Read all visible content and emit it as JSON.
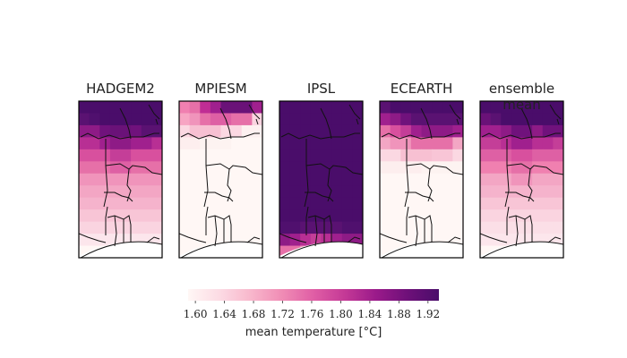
{
  "panels": [
    {
      "title": "HADGEM2",
      "colors": [
        [
          "#4a0d6a",
          "#4a0d6a",
          "#4a0d6a",
          "#4a0d6a",
          "#4a0d6a",
          "#4a0d6a",
          "#4a0d6a",
          "#4a0d6a"
        ],
        [
          "#5a1272",
          "#50106e",
          "#4a0d6a",
          "#4a0d6a",
          "#4a0d6a",
          "#4a0d6a",
          "#4a0d6a",
          "#4a0d6a"
        ],
        [
          "#8e1b86",
          "#8e1b86",
          "#70127c",
          "#6a1278",
          "#6a1278",
          "#70127c",
          "#5a1272",
          "#5a1272"
        ],
        [
          "#b82f94",
          "#b82f94",
          "#a0208e",
          "#8e1b86",
          "#8e1b86",
          "#a0208e",
          "#a0208e",
          "#b82f94"
        ],
        [
          "#d8509e",
          "#d8509e",
          "#d8509e",
          "#c43e98",
          "#c43e98",
          "#d8509e",
          "#d8509e",
          "#d8509e"
        ],
        [
          "#e670a8",
          "#e670a8",
          "#e670a8",
          "#de60a4",
          "#de60a4",
          "#e670a8",
          "#e670a8",
          "#e670a8"
        ],
        [
          "#f094bb",
          "#f094bb",
          "#f094bb",
          "#f094bb",
          "#f094bb",
          "#f094bb",
          "#f094bb",
          "#f094bb"
        ],
        [
          "#f3a6c4",
          "#f3a6c4",
          "#f3a6c4",
          "#f3a6c4",
          "#f3a6c4",
          "#f3a6c4",
          "#f3a6c4",
          "#f3a6c4"
        ],
        [
          "#f5b3cc",
          "#f5b3cc",
          "#f5b3cc",
          "#f5b3cc",
          "#f5b3cc",
          "#f5b3cc",
          "#f5b3cc",
          "#f5b3cc"
        ],
        [
          "#f8c5d6",
          "#f8c5d6",
          "#f8c5d6",
          "#f8c5d6",
          "#f8c5d6",
          "#f8c5d6",
          "#f8c5d6",
          "#f8c5d6"
        ],
        [
          "#fad4e0",
          "#fad4e0",
          "#fad4e0",
          "#fad4e0",
          "#fad4e0",
          "#fad4e0",
          "#fad4e0",
          "#fad4e0"
        ],
        [
          "#fce6ec",
          "#fce6ec",
          "#fce6ec",
          "#fce6ec",
          "#fce6ec",
          "#fce6ec",
          "#fce6ec",
          "#fce6ec"
        ],
        [
          "#fff7f5",
          "#fff7f5",
          "#fff7f5",
          "#fff7f5",
          "#fff7f5",
          "#fff7f5",
          "#fff7f5",
          "#fff7f5"
        ]
      ]
    },
    {
      "title": "MPIESM",
      "colors": [
        [
          "#f080b0",
          "#e670a8",
          "#c02d94",
          "#a0208e",
          "#6a1278",
          "#6a1278",
          "#6a1278",
          "#a0208e"
        ],
        [
          "#f7a5c3",
          "#f094bb",
          "#e670a8",
          "#de60a4",
          "#de60a4",
          "#e670a8",
          "#e670a8",
          "#fad4e0"
        ],
        [
          "#fbd8e2",
          "#f7c0d2",
          "#f7c0d2",
          "#f7c0d2",
          "#fbd8e2",
          "#fbd8e2",
          "#fdf0f0",
          "#fdf0f0"
        ],
        [
          "#fdeeee",
          "#fdeeee",
          "#fdf3f1",
          "#fdf3f1",
          "#fdf3f1",
          "#fff7f5",
          "#fff7f5",
          "#fff7f5"
        ],
        [
          "#fff7f5",
          "#fff7f5",
          "#fff7f5",
          "#fff7f5",
          "#fff7f5",
          "#fff7f5",
          "#fff7f5",
          "#fff7f5"
        ],
        [
          "#fff7f5",
          "#fff7f5",
          "#fff7f5",
          "#fff7f5",
          "#fff7f5",
          "#fff7f5",
          "#fff7f5",
          "#fff7f5"
        ],
        [
          "#fff7f5",
          "#fff7f5",
          "#fff7f5",
          "#fff7f5",
          "#fff7f5",
          "#fff7f5",
          "#fff7f5",
          "#fff7f5"
        ],
        [
          "#fff7f5",
          "#fff7f5",
          "#fff7f5",
          "#fff7f5",
          "#fff7f5",
          "#fff7f5",
          "#fff7f5",
          "#fff7f5"
        ],
        [
          "#fff7f5",
          "#fff7f5",
          "#fff7f5",
          "#fff7f5",
          "#fff7f5",
          "#fff7f5",
          "#fff7f5",
          "#fff7f5"
        ],
        [
          "#fff7f5",
          "#fff7f5",
          "#fff7f5",
          "#fff7f5",
          "#fff7f5",
          "#fff7f5",
          "#fff7f5",
          "#fff7f5"
        ],
        [
          "#fff7f5",
          "#fff7f5",
          "#fff7f5",
          "#fff7f5",
          "#fff7f5",
          "#fff7f5",
          "#fff7f5",
          "#fff7f5"
        ],
        [
          "#fff7f5",
          "#fff7f5",
          "#fff7f5",
          "#fff7f5",
          "#fff7f5",
          "#fff7f5",
          "#fff7f5",
          "#fff7f5"
        ],
        [
          "#fff7f5",
          "#fff7f5",
          "#fff7f5",
          "#fff7f5",
          "#fff7f5",
          "#fff7f5",
          "#fff7f5",
          "#fff7f5"
        ]
      ]
    },
    {
      "title": "IPSL",
      "colors": [
        [
          "#4a0d6a",
          "#4a0d6a",
          "#4a0d6a",
          "#4a0d6a",
          "#4a0d6a",
          "#4a0d6a",
          "#4a0d6a",
          "#4a0d6a"
        ],
        [
          "#4a0d6a",
          "#4a0d6a",
          "#4a0d6a",
          "#4a0d6a",
          "#4a0d6a",
          "#4a0d6a",
          "#4a0d6a",
          "#4a0d6a"
        ],
        [
          "#4a0d6a",
          "#4a0d6a",
          "#4a0d6a",
          "#4a0d6a",
          "#4a0d6a",
          "#4a0d6a",
          "#4a0d6a",
          "#4a0d6a"
        ],
        [
          "#4a0d6a",
          "#4a0d6a",
          "#4a0d6a",
          "#4a0d6a",
          "#4a0d6a",
          "#4a0d6a",
          "#4a0d6a",
          "#4a0d6a"
        ],
        [
          "#4a0d6a",
          "#4a0d6a",
          "#4a0d6a",
          "#4a0d6a",
          "#4a0d6a",
          "#4a0d6a",
          "#4a0d6a",
          "#4a0d6a"
        ],
        [
          "#4a0d6a",
          "#4a0d6a",
          "#4a0d6a",
          "#4a0d6a",
          "#4a0d6a",
          "#4a0d6a",
          "#4a0d6a",
          "#4a0d6a"
        ],
        [
          "#4a0d6a",
          "#4a0d6a",
          "#4a0d6a",
          "#4a0d6a",
          "#4a0d6a",
          "#4a0d6a",
          "#4a0d6a",
          "#4a0d6a"
        ],
        [
          "#4a0d6a",
          "#4a0d6a",
          "#4a0d6a",
          "#4a0d6a",
          "#4a0d6a",
          "#4a0d6a",
          "#4a0d6a",
          "#4a0d6a"
        ],
        [
          "#4a0d6a",
          "#4a0d6a",
          "#4a0d6a",
          "#4a0d6a",
          "#4a0d6a",
          "#4a0d6a",
          "#4a0d6a",
          "#4a0d6a"
        ],
        [
          "#4a0d6a",
          "#4a0d6a",
          "#4a0d6a",
          "#4a0d6a",
          "#4a0d6a",
          "#4a0d6a",
          "#4a0d6a",
          "#4a0d6a"
        ],
        [
          "#50106e",
          "#50106e",
          "#5a1272",
          "#5a1272",
          "#5a1272",
          "#5a1272",
          "#50106e",
          "#50106e"
        ],
        [
          "#8e1b86",
          "#a0208e",
          "#b82f94",
          "#c43e98",
          "#b82f94",
          "#a0208e",
          "#8e1b86",
          "#8e1b86"
        ],
        [
          "#e670a8",
          "#e670a8",
          "#f094bb",
          "#f3a6c4",
          "#f7c0d2",
          "#fad4e0",
          "#fce6ec",
          "#fff7f5"
        ]
      ]
    },
    {
      "title": "ECEARTH",
      "colors": [
        [
          "#5a1272",
          "#4a0d6a",
          "#4a0d6a",
          "#4a0d6a",
          "#4a0d6a",
          "#4a0d6a",
          "#4a0d6a",
          "#4a0d6a"
        ],
        [
          "#a0208e",
          "#8e1b86",
          "#70127c",
          "#5a1272",
          "#5a1272",
          "#5a1272",
          "#5a1272",
          "#5a1272"
        ],
        [
          "#e670a8",
          "#d8509e",
          "#c43e98",
          "#a0208e",
          "#8e1b86",
          "#8e1b86",
          "#8e1b86",
          "#a0208e"
        ],
        [
          "#f3a6c4",
          "#f094bb",
          "#f094bb",
          "#e670a8",
          "#e670a8",
          "#e670a8",
          "#e670a8",
          "#f3a6c4"
        ],
        [
          "#fbd8e2",
          "#fbd8e2",
          "#f7c0d2",
          "#f7c0d2",
          "#f7c0d2",
          "#f8c5d6",
          "#f8c5d6",
          "#fbd8e2"
        ],
        [
          "#fdeeee",
          "#fdeeee",
          "#fdeeee",
          "#fdeeee",
          "#fdf3f1",
          "#fdf3f1",
          "#fdf3f1",
          "#fdf3f1"
        ],
        [
          "#fff7f5",
          "#fff7f5",
          "#fff7f5",
          "#fff7f5",
          "#fff7f5",
          "#fff7f5",
          "#fff7f5",
          "#fff7f5"
        ],
        [
          "#fff7f5",
          "#fff7f5",
          "#fff7f5",
          "#fff7f5",
          "#fff7f5",
          "#fff7f5",
          "#fff7f5",
          "#fff7f5"
        ],
        [
          "#fff7f5",
          "#fff7f5",
          "#fff7f5",
          "#fff7f5",
          "#fff7f5",
          "#fff7f5",
          "#fff7f5",
          "#fff7f5"
        ],
        [
          "#fff7f5",
          "#fff7f5",
          "#fff7f5",
          "#fff7f5",
          "#fff7f5",
          "#fff7f5",
          "#fff7f5",
          "#fff7f5"
        ],
        [
          "#fff7f5",
          "#fff7f5",
          "#fff7f5",
          "#fff7f5",
          "#fff7f5",
          "#fff7f5",
          "#fff7f5",
          "#fff7f5"
        ],
        [
          "#fff7f5",
          "#fff7f5",
          "#fff7f5",
          "#fff7f5",
          "#fff7f5",
          "#fff7f5",
          "#fff7f5",
          "#fff7f5"
        ],
        [
          "#fff7f5",
          "#fff7f5",
          "#fff7f5",
          "#fff7f5",
          "#fff7f5",
          "#fff7f5",
          "#fff7f5",
          "#fff7f5"
        ]
      ]
    },
    {
      "title": "ensemble mean",
      "colors": [
        [
          "#4a0d6a",
          "#4a0d6a",
          "#4a0d6a",
          "#4a0d6a",
          "#4a0d6a",
          "#4a0d6a",
          "#4a0d6a",
          "#4a0d6a"
        ],
        [
          "#6a1278",
          "#5a1272",
          "#4a0d6a",
          "#4a0d6a",
          "#4a0d6a",
          "#4a0d6a",
          "#4a0d6a",
          "#4a0d6a"
        ],
        [
          "#a0208e",
          "#a0208e",
          "#8e1b86",
          "#70127c",
          "#70127c",
          "#8e1b86",
          "#70127c",
          "#70127c"
        ],
        [
          "#c43e98",
          "#c43e98",
          "#b82f94",
          "#a0208e",
          "#a0208e",
          "#b82f94",
          "#b82f94",
          "#c43e98"
        ],
        [
          "#de60a4",
          "#de60a4",
          "#de60a4",
          "#d8509e",
          "#d8509e",
          "#de60a4",
          "#de60a4",
          "#de60a4"
        ],
        [
          "#f080b0",
          "#f080b0",
          "#f080b0",
          "#e670a8",
          "#e670a8",
          "#f080b0",
          "#f080b0",
          "#f080b0"
        ],
        [
          "#f3a6c4",
          "#f3a6c4",
          "#f3a6c4",
          "#f094bb",
          "#f094bb",
          "#f3a6c4",
          "#f3a6c4",
          "#f3a6c4"
        ],
        [
          "#f5b3cc",
          "#f5b3cc",
          "#f5b3cc",
          "#f5b3cc",
          "#f5b3cc",
          "#f5b3cc",
          "#f5b3cc",
          "#f5b3cc"
        ],
        [
          "#f8c5d6",
          "#f8c5d6",
          "#f8c5d6",
          "#f8c5d6",
          "#f8c5d6",
          "#f8c5d6",
          "#f8c5d6",
          "#f8c5d6"
        ],
        [
          "#fad4e0",
          "#fad4e0",
          "#fad4e0",
          "#fad4e0",
          "#fad4e0",
          "#fad4e0",
          "#fad4e0",
          "#fad4e0"
        ],
        [
          "#fbdfe7",
          "#fbdfe7",
          "#fbdfe7",
          "#fbdfe7",
          "#fbdfe7",
          "#fbdfe7",
          "#fbdfe7",
          "#fbdfe7"
        ],
        [
          "#fce6ec",
          "#fce6ec",
          "#fce6ec",
          "#fce6ec",
          "#fce6ec",
          "#fce6ec",
          "#fce6ec",
          "#fce6ec"
        ],
        [
          "#fff7f5",
          "#fff7f5",
          "#fff7f5",
          "#fff7f5",
          "#fff7f5",
          "#fff7f5",
          "#fff7f5",
          "#fff7f5"
        ]
      ]
    }
  ],
  "colorbar": {
    "label": "mean temperature [°C]",
    "ticks": [
      "1.60",
      "1.64",
      "1.68",
      "1.72",
      "1.76",
      "1.80",
      "1.84",
      "1.88",
      "1.92"
    ],
    "range": [
      1.59,
      1.935
    ],
    "colors": [
      "#fff7f5",
      "#fcdbe4",
      "#f8b7cc",
      "#f08cb5",
      "#e05ea5",
      "#c43996",
      "#9a1a8a",
      "#6e1079",
      "#4a0d6a"
    ]
  }
}
